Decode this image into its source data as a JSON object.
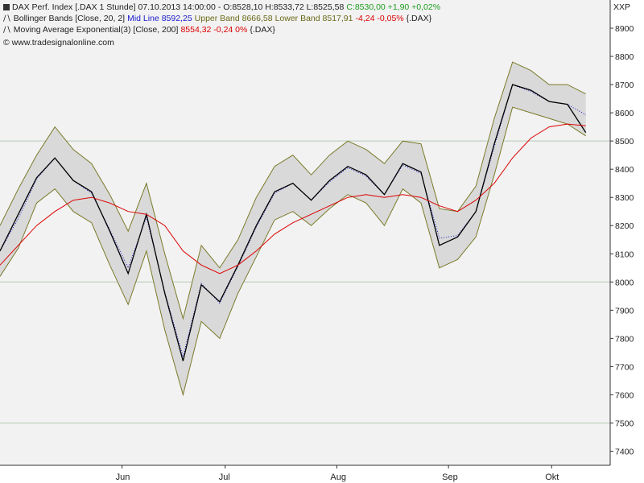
{
  "legend": {
    "line1": {
      "name": "DAX Perf. Index [.DAX  1 Stunde]",
      "datetime": "07.10.2013 14:00:00",
      "ohlc": "- O:8528,10 H:8533,72 L:8525,58",
      "close": "C:8530,00 +1,90 +0,02%"
    },
    "line2": {
      "name": "Bollinger Bands [Close, 20, 2]",
      "mid": "Mid Line 8592,25",
      "upper": "Upper Band 8666,58",
      "lower": "Lower Band 8517,91",
      "change": "-4,24 -0,05%",
      "symbol": "{.DAX}"
    },
    "line3": {
      "name": "Moving Average Exponential(3) [Close, 200]",
      "value": "8554,32 -0,24 0%",
      "symbol": "{.DAX}"
    },
    "line4": "© www.tradesignalonline.com"
  },
  "colors": {
    "price": "#000000",
    "bands_line": "#7a7a2a",
    "bands_fill": "#d9d9d9",
    "mid": "#1a1acc",
    "ema": "#dd0000",
    "close_green": "#1f9d1f",
    "grid": "#b7c9b7",
    "axis_text": "#222222"
  },
  "chart_data": {
    "type": "line",
    "ylabel": "XXP",
    "ylim": [
      7350,
      9000
    ],
    "yticks": [
      7400,
      7500,
      7600,
      7700,
      7800,
      7900,
      8000,
      8100,
      8200,
      8300,
      8400,
      8500,
      8600,
      8700,
      8800,
      8900
    ],
    "horizontal_lines": [
      7500,
      8000,
      8500
    ],
    "x_labels": [
      "Jun",
      "Jul",
      "Aug",
      "Sep",
      "Okt"
    ],
    "x_label_positions": [
      0.2,
      0.369,
      0.552,
      0.735,
      0.904
    ],
    "x": [
      0,
      0.03,
      0.06,
      0.09,
      0.12,
      0.15,
      0.18,
      0.21,
      0.24,
      0.27,
      0.3,
      0.33,
      0.36,
      0.39,
      0.42,
      0.45,
      0.48,
      0.51,
      0.54,
      0.57,
      0.6,
      0.63,
      0.66,
      0.69,
      0.72,
      0.75,
      0.78,
      0.81,
      0.84,
      0.87,
      0.9,
      0.93,
      0.96
    ],
    "series": [
      {
        "name": "DAX Perf. Index",
        "values": [
          8110,
          8240,
          8370,
          8440,
          8360,
          8320,
          8180,
          8030,
          8240,
          7960,
          7720,
          7990,
          7930,
          8060,
          8200,
          8320,
          8350,
          8290,
          8360,
          8410,
          8380,
          8310,
          8420,
          8390,
          8130,
          8160,
          8250,
          8490,
          8700,
          8680,
          8640,
          8630,
          8530
        ]
      },
      {
        "name": "Moving Average Exponential(3)",
        "values": [
          8060,
          8130,
          8200,
          8250,
          8290,
          8300,
          8280,
          8250,
          8240,
          8200,
          8110,
          8060,
          8030,
          8060,
          8110,
          8170,
          8210,
          8240,
          8270,
          8300,
          8310,
          8300,
          8310,
          8300,
          8270,
          8250,
          8290,
          8350,
          8440,
          8510,
          8550,
          8560,
          8554
        ]
      },
      {
        "name": "Bollinger Upper Band",
        "values": [
          8200,
          8330,
          8450,
          8550,
          8470,
          8420,
          8310,
          8180,
          8350,
          8100,
          7870,
          8130,
          8050,
          8150,
          8300,
          8410,
          8450,
          8380,
          8450,
          8500,
          8470,
          8420,
          8500,
          8490,
          8260,
          8250,
          8340,
          8580,
          8780,
          8750,
          8700,
          8700,
          8667
        ]
      },
      {
        "name": "Bollinger Lower Band",
        "values": [
          8020,
          8120,
          8280,
          8330,
          8250,
          8210,
          8060,
          7920,
          8110,
          7830,
          7600,
          7860,
          7800,
          7960,
          8090,
          8220,
          8250,
          8200,
          8260,
          8310,
          8280,
          8200,
          8330,
          8280,
          8050,
          8080,
          8160,
          8380,
          8620,
          8600,
          8580,
          8560,
          8518
        ]
      }
    ]
  }
}
